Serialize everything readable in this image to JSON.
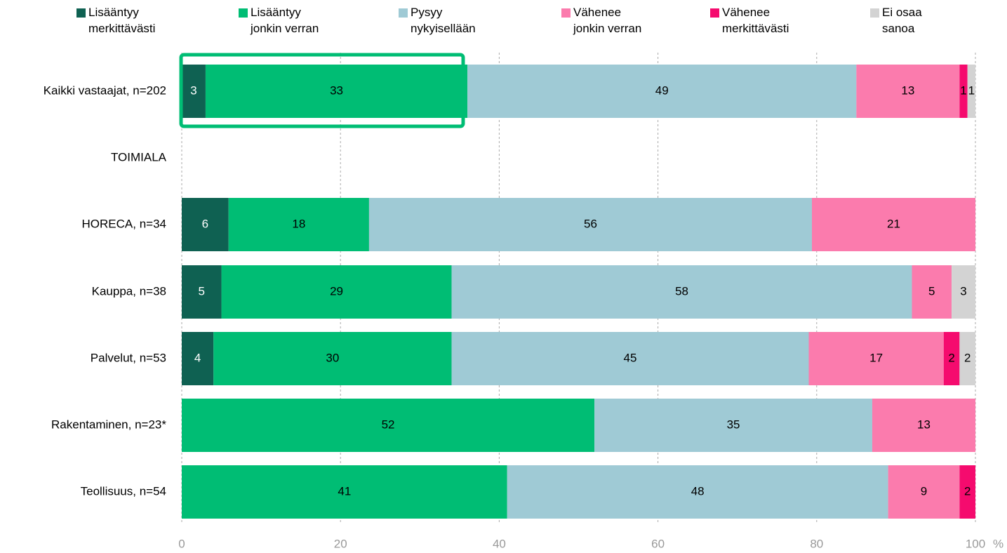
{
  "chart_data": {
    "type": "stacked_barh",
    "categories": [
      "Kaikki vastaajat, n=202",
      "TOIMIALA",
      "HORECA, n=34",
      "Kauppa, n=38",
      "Palvelut, n=53",
      "Rakentaminen, n=23*",
      "Teollisuus, n=54"
    ],
    "series": [
      {
        "name": "Lisääntyy\nmerkittävästi",
        "color": "#0f6152",
        "values": [
          3,
          null,
          5.9,
          5,
          4,
          null,
          null
        ],
        "value_labels": [
          "3",
          null,
          "6",
          "5",
          "4",
          null,
          null
        ]
      },
      {
        "name": "Lisääntyy\njonkin verran",
        "color": "#00bd74",
        "values": [
          33,
          null,
          17.7,
          29,
          30,
          52,
          41
        ],
        "value_labels": [
          "33",
          null,
          "18",
          "29",
          "30",
          "52",
          "41"
        ]
      },
      {
        "name": "Pysyy\nnykyisellään",
        "color": "#9fcad5",
        "values": [
          49,
          null,
          55.8,
          58,
          45,
          35,
          48
        ],
        "value_labels": [
          "49",
          null,
          "56",
          "58",
          "45",
          "35",
          "48"
        ]
      },
      {
        "name": "Vähenee\njonkin verran",
        "color": "#fb7bad",
        "values": [
          13,
          null,
          20.6,
          5,
          17,
          13,
          9
        ],
        "value_labels": [
          "13",
          null,
          "21",
          "5",
          "17",
          "13",
          "9"
        ]
      },
      {
        "name": "Vähenee\nmerkittävästi",
        "color": "#f50b6e",
        "values": [
          1,
          null,
          null,
          null,
          2,
          null,
          2
        ],
        "value_labels": [
          "1",
          null,
          null,
          null,
          "2",
          null,
          "2"
        ]
      },
      {
        "name": "Ei osaa\nsanoa",
        "color": "#d3d3d3",
        "values": [
          1,
          null,
          null,
          3,
          2,
          null,
          null
        ],
        "value_labels": [
          "1",
          null,
          null,
          "3",
          "2",
          null,
          null
        ]
      }
    ],
    "xlabel": "%",
    "xlim": [
      0,
      100
    ],
    "xticks": [
      0,
      20,
      40,
      60,
      80,
      100
    ],
    "grid": true
  }
}
